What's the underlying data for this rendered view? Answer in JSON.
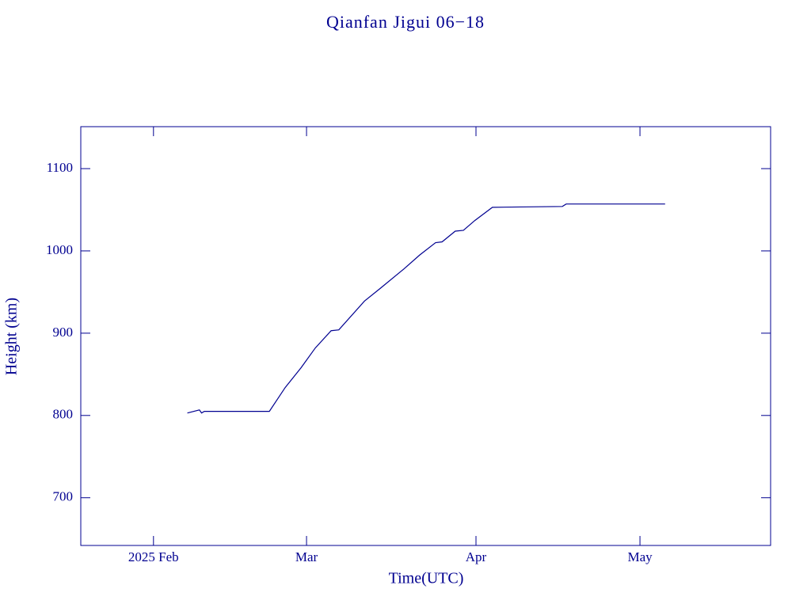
{
  "chart_data": {
    "type": "line",
    "title": "Qianfan Jigui 06−18",
    "x_label": "Time(UTC)",
    "y_label": "Height (km)",
    "xlim": [
      -13.3,
      112.9
    ],
    "ylim": [
      642,
      1151
    ],
    "xticks": [
      {
        "value": 0,
        "label": "2025 Feb"
      },
      {
        "value": 28,
        "label": "Mar"
      },
      {
        "value": 59,
        "label": "Apr"
      },
      {
        "value": 89,
        "label": "May"
      }
    ],
    "yticks": [
      700,
      800,
      900,
      1000,
      1100
    ],
    "color": "#000090",
    "x": [
      6.2,
      8.4,
      8.8,
      9.3,
      21.2,
      22.6,
      24.1,
      27.0,
      29.6,
      32.5,
      33.9,
      38.6,
      41.4,
      45.8,
      48.7,
      51.6,
      52.8,
      55.2,
      56.7,
      58.8,
      62.0,
      74.8,
      75.5,
      93.6
    ],
    "values": [
      803,
      806.7,
      803,
      805,
      805,
      819,
      834,
      858,
      882,
      903,
      904,
      939,
      954,
      978,
      995,
      1010,
      1011,
      1024,
      1025,
      1037,
      1053,
      1054,
      1057,
      1057
    ]
  }
}
